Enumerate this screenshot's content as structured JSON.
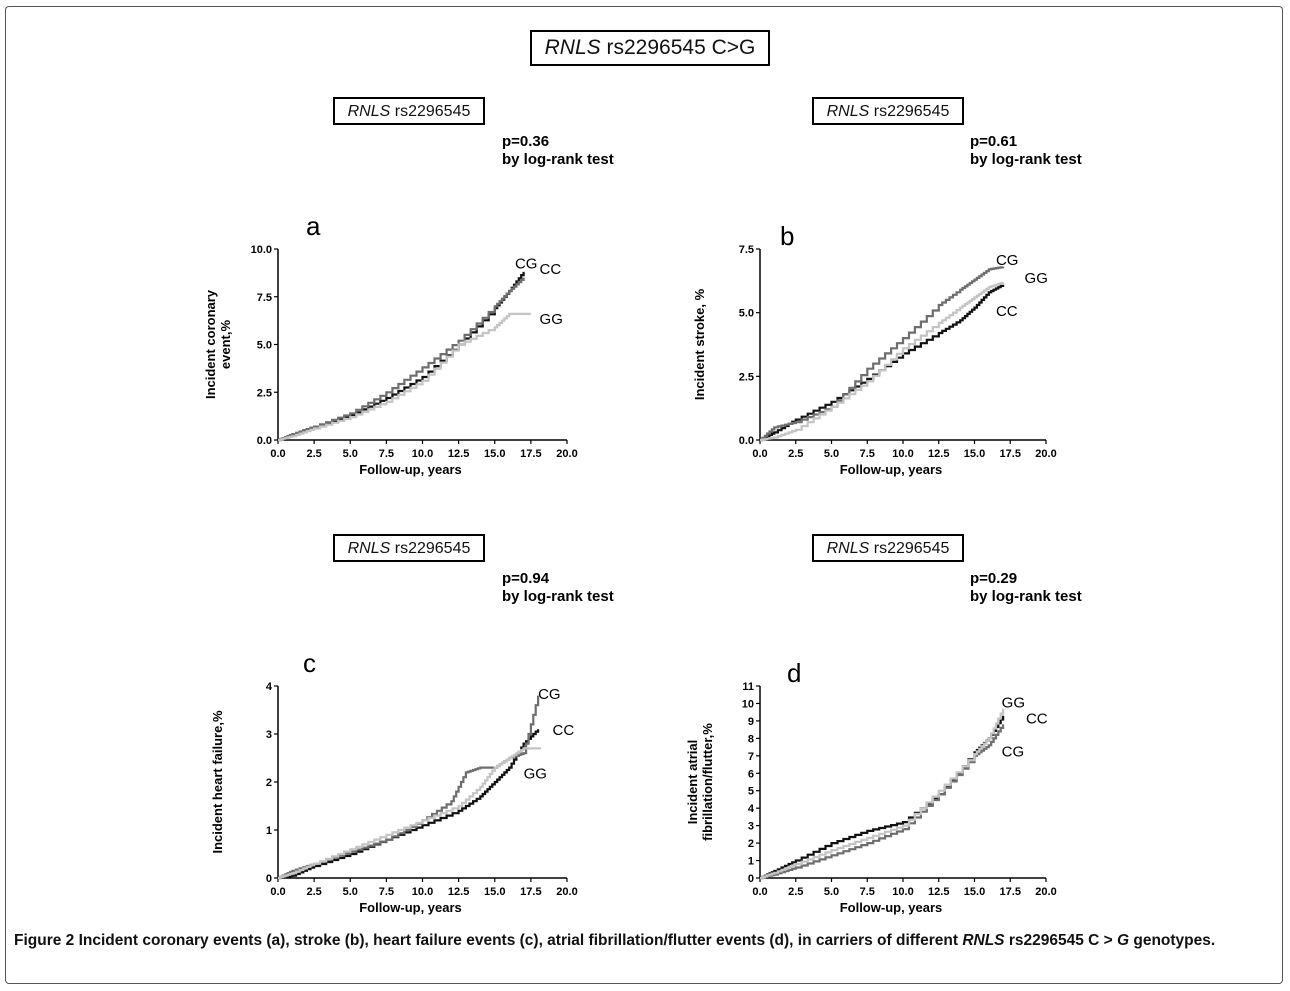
{
  "figure": {
    "main_title": {
      "italic": "RNLS",
      "rest": " rs2296545 C>G"
    },
    "caption": {
      "label": "Figure 2",
      "text1": " Incident coronary events (a), stroke (b), heart failure events (c), atrial fibrillation/flutter events (d), in carriers of different ",
      "gene": "RNLS",
      "text2": " rs2296545 C ",
      "gt": ">",
      "text3": " ",
      "allele": "G",
      "text4": " genotypes."
    }
  },
  "colors": {
    "CC": "#111111",
    "CG": "#6e6e6e",
    "GG": "#c4c4c4"
  },
  "chart_data": [
    {
      "id": "a",
      "type": "line",
      "panel_letter": "a",
      "panel_title": {
        "italic": "RNLS",
        "rest": " rs2296545"
      },
      "pvalue": "p=0.36",
      "test": "by log-rank test",
      "xlabel": "Follow-up, years",
      "ylabel": [
        "Incident coronary",
        "event,%"
      ],
      "xlim": [
        0,
        20
      ],
      "ylim": [
        0,
        10
      ],
      "xticks": [
        "0.0",
        "2.5",
        "5.0",
        "7.5",
        "10.0",
        "12.5",
        "15.0",
        "17.5",
        "20.0"
      ],
      "yticks": [
        "0.0",
        "2.5",
        "5.0",
        "7.5",
        "10.0"
      ],
      "series": [
        {
          "name": "CC",
          "x": [
            0,
            1,
            2.5,
            5,
            7.5,
            10,
            12.5,
            15,
            16,
            17
          ],
          "y": [
            0,
            0.3,
            0.7,
            1.3,
            2.2,
            3.3,
            5,
            6.9,
            7.8,
            8.8
          ]
        },
        {
          "name": "CG",
          "x": [
            0,
            1,
            2.5,
            5,
            7.5,
            10,
            12.5,
            15,
            16,
            17
          ],
          "y": [
            0,
            0.3,
            0.7,
            1.4,
            2.5,
            3.8,
            5.2,
            7.0,
            7.8,
            8.5
          ]
        },
        {
          "name": "GG",
          "x": [
            0,
            1,
            2.5,
            5,
            7.5,
            10,
            12.5,
            15,
            16,
            17.5
          ],
          "y": [
            0,
            0.2,
            0.6,
            1.2,
            2.0,
            3.1,
            5.0,
            5.9,
            6.6,
            6.6
          ]
        }
      ],
      "end_labels": [
        {
          "name": "CG",
          "x": 16.4,
          "y": 9.3
        },
        {
          "name": "CC",
          "x": 18.1,
          "y": 9.0
        },
        {
          "name": "GG",
          "x": 18.1,
          "y": 6.4
        }
      ]
    },
    {
      "id": "b",
      "type": "line",
      "panel_letter": "b",
      "panel_title": {
        "italic": "RNLS",
        "rest": " rs2296545"
      },
      "pvalue": "p=0.61",
      "test": "by log-rank test",
      "xlabel": "Follow-up, years",
      "ylabel": [
        "Incident stroke, %"
      ],
      "xlim": [
        0,
        20
      ],
      "ylim": [
        0,
        7.5
      ],
      "xticks": [
        "0.0",
        "2.5",
        "5.0",
        "7.5",
        "10.0",
        "12.5",
        "15.0",
        "17.5",
        "20.0"
      ],
      "yticks": [
        "0.0",
        "2.5",
        "5.0",
        "7.5"
      ],
      "series": [
        {
          "name": "CC",
          "x": [
            0,
            1,
            2.5,
            5,
            7.5,
            10,
            12.5,
            14,
            15,
            16,
            17
          ],
          "y": [
            0,
            0.3,
            0.8,
            1.5,
            2.4,
            3.4,
            4.2,
            4.7,
            5.2,
            5.8,
            6.1
          ]
        },
        {
          "name": "CG",
          "x": [
            0,
            1,
            2.5,
            5,
            7.5,
            10,
            12.5,
            14,
            15,
            16,
            17
          ],
          "y": [
            0,
            0.5,
            0.7,
            1.3,
            2.8,
            4.0,
            5.3,
            5.9,
            6.3,
            6.7,
            6.8
          ]
        },
        {
          "name": "GG",
          "x": [
            0,
            1,
            2.5,
            5,
            7.5,
            10,
            12.5,
            14,
            15,
            16,
            17
          ],
          "y": [
            0,
            0.1,
            0.4,
            1.3,
            2.3,
            3.6,
            4.6,
            5.2,
            5.6,
            6.0,
            6.2
          ]
        }
      ],
      "end_labels": [
        {
          "name": "CG",
          "x": 16.5,
          "y": 7.1
        },
        {
          "name": "GG",
          "x": 18.5,
          "y": 6.4
        },
        {
          "name": "CC",
          "x": 16.5,
          "y": 5.1
        }
      ]
    },
    {
      "id": "c",
      "type": "line",
      "panel_letter": "c",
      "panel_title": {
        "italic": "RNLS",
        "rest": " rs2296545"
      },
      "pvalue": "p=0.94",
      "test": "by log-rank test",
      "xlabel": "Follow-up, years",
      "ylabel": [
        "Incident heart failure,%"
      ],
      "xlim": [
        0,
        20
      ],
      "ylim": [
        0,
        4
      ],
      "xticks": [
        "0.0",
        "2.5",
        "5.0",
        "7.5",
        "10.0",
        "12.5",
        "15.0",
        "17.5",
        "20.0"
      ],
      "yticks": [
        "0",
        "1",
        "2",
        "3",
        "4"
      ],
      "series": [
        {
          "name": "CC",
          "x": [
            0,
            1,
            2.5,
            5,
            7.5,
            10,
            12.5,
            14,
            15,
            16,
            17,
            18
          ],
          "y": [
            0,
            0.05,
            0.25,
            0.5,
            0.8,
            1.1,
            1.4,
            1.7,
            2.0,
            2.3,
            2.8,
            3.1
          ]
        },
        {
          "name": "CG",
          "x": [
            0,
            1,
            2.5,
            5,
            7.5,
            10,
            12,
            13,
            14,
            15,
            16,
            17,
            18
          ],
          "y": [
            0,
            0.15,
            0.3,
            0.55,
            0.8,
            1.2,
            1.6,
            2.2,
            2.3,
            2.3,
            2.5,
            2.6,
            3.8
          ]
        },
        {
          "name": "GG",
          "x": [
            0,
            1,
            2.5,
            5,
            7.5,
            10,
            12.5,
            14,
            15,
            16,
            17,
            18.2
          ],
          "y": [
            0,
            0.1,
            0.3,
            0.6,
            0.9,
            1.2,
            1.5,
            1.9,
            2.3,
            2.5,
            2.7,
            2.7
          ]
        }
      ],
      "end_labels": [
        {
          "name": "CG",
          "x": 18.0,
          "y": 3.85
        },
        {
          "name": "CC",
          "x": 19.0,
          "y": 3.1
        },
        {
          "name": "GG",
          "x": 17.0,
          "y": 2.2
        }
      ]
    },
    {
      "id": "d",
      "type": "line",
      "panel_letter": "d",
      "panel_title": {
        "italic": "RNLS",
        "rest": " rs2296545"
      },
      "pvalue": "p=0.29",
      "test": "by log-rank test",
      "xlabel": "Follow-up, years",
      "ylabel": [
        "Incident atrial",
        "fibrillation/flutter,%"
      ],
      "xlim": [
        0,
        20
      ],
      "ylim": [
        0,
        11
      ],
      "xticks": [
        "0.0",
        "2.5",
        "5.0",
        "7.5",
        "10.0",
        "12.5",
        "15.0",
        "17.5",
        "20.0"
      ],
      "yticks": [
        "0",
        "1",
        "2",
        "3",
        "4",
        "5",
        "6",
        "7",
        "8",
        "9",
        "10",
        "11"
      ],
      "series": [
        {
          "name": "CC",
          "x": [
            0,
            1,
            2.5,
            5,
            7.5,
            10,
            12.5,
            15,
            16,
            17
          ],
          "y": [
            0,
            0.4,
            1.0,
            2.0,
            2.7,
            3.2,
            4.8,
            7.2,
            8.0,
            9.3
          ]
        },
        {
          "name": "CG",
          "x": [
            0,
            1,
            2.5,
            5,
            7.5,
            10,
            12.5,
            15,
            16,
            17
          ],
          "y": [
            0,
            0.2,
            0.6,
            1.3,
            2.0,
            2.8,
            4.8,
            7.0,
            7.6,
            8.8
          ]
        },
        {
          "name": "GG",
          "x": [
            0,
            1,
            2.5,
            5,
            7.5,
            10,
            12.5,
            15,
            16,
            17
          ],
          "y": [
            0,
            0.3,
            0.8,
            1.6,
            2.3,
            3.0,
            5.0,
            7.1,
            8.0,
            9.7
          ]
        }
      ],
      "end_labels": [
        {
          "name": "GG",
          "x": 16.9,
          "y": 10.1
        },
        {
          "name": "CC",
          "x": 18.6,
          "y": 9.2
        },
        {
          "name": "CG",
          "x": 16.9,
          "y": 7.3
        }
      ]
    }
  ]
}
